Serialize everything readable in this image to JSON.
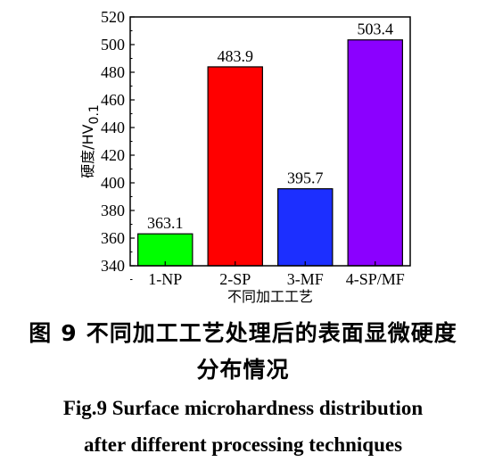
{
  "chart_data": {
    "type": "bar",
    "categories": [
      "1-NP",
      "2-SP",
      "3-MF",
      "4-SP/MF"
    ],
    "values": [
      363.1,
      483.9,
      395.7,
      503.4
    ],
    "data_labels": [
      "363.1",
      "483.9",
      "395.7",
      "503.4"
    ],
    "bar_colors": [
      "#00ff00",
      "#ff0000",
      "#1c2fff",
      "#8b00ff"
    ],
    "xlabel": "不同加工工艺",
    "ylabel": "硬度/HV",
    "ylabel_sub": "0.1",
    "ylim": [
      340,
      520
    ],
    "yticks": [
      340,
      360,
      380,
      400,
      420,
      440,
      460,
      480,
      500,
      520
    ],
    "grid": false,
    "legend": "none"
  },
  "caption": {
    "cn_prefix": "图",
    "cn_number": "9",
    "cn_line1": "不同加工工艺处理后的表面显微硬度",
    "cn_line2": "分布情况",
    "en_line1": "Fig.9 Surface microhardness distribution",
    "en_line2": "after different processing techniques"
  }
}
